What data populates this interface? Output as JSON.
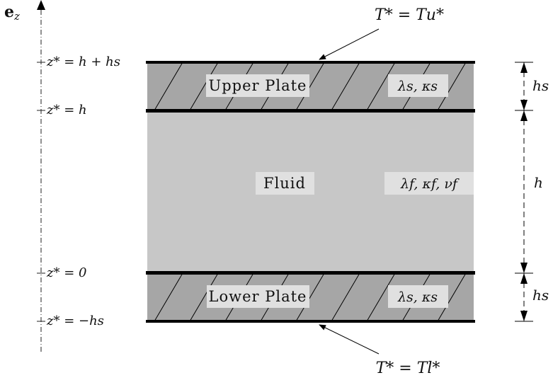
{
  "axis": {
    "label": "e",
    "label_sub": "z"
  },
  "ticks": {
    "top": "z* = h + hs",
    "upper_interface": "z* = h",
    "lower_interface": "z* = 0",
    "bottom": "z* = −hs"
  },
  "regions": {
    "upper_plate": {
      "label": "Upper Plate",
      "properties": "λs, κs"
    },
    "fluid": {
      "label": "Fluid",
      "properties": "λf, κf, νf"
    },
    "lower_plate": {
      "label": "Lower Plate",
      "properties": "λs, κs"
    }
  },
  "boundary_conditions": {
    "upper": "T* = Tu*",
    "lower": "T* = Tl*"
  },
  "dimensions": {
    "plate_thickness": "hs",
    "fluid_height": "h"
  },
  "colors": {
    "plate": "#a6a6a6",
    "fluid": "#c7c7c7",
    "label_box": "#e0e0e0",
    "wall": "#000000"
  }
}
